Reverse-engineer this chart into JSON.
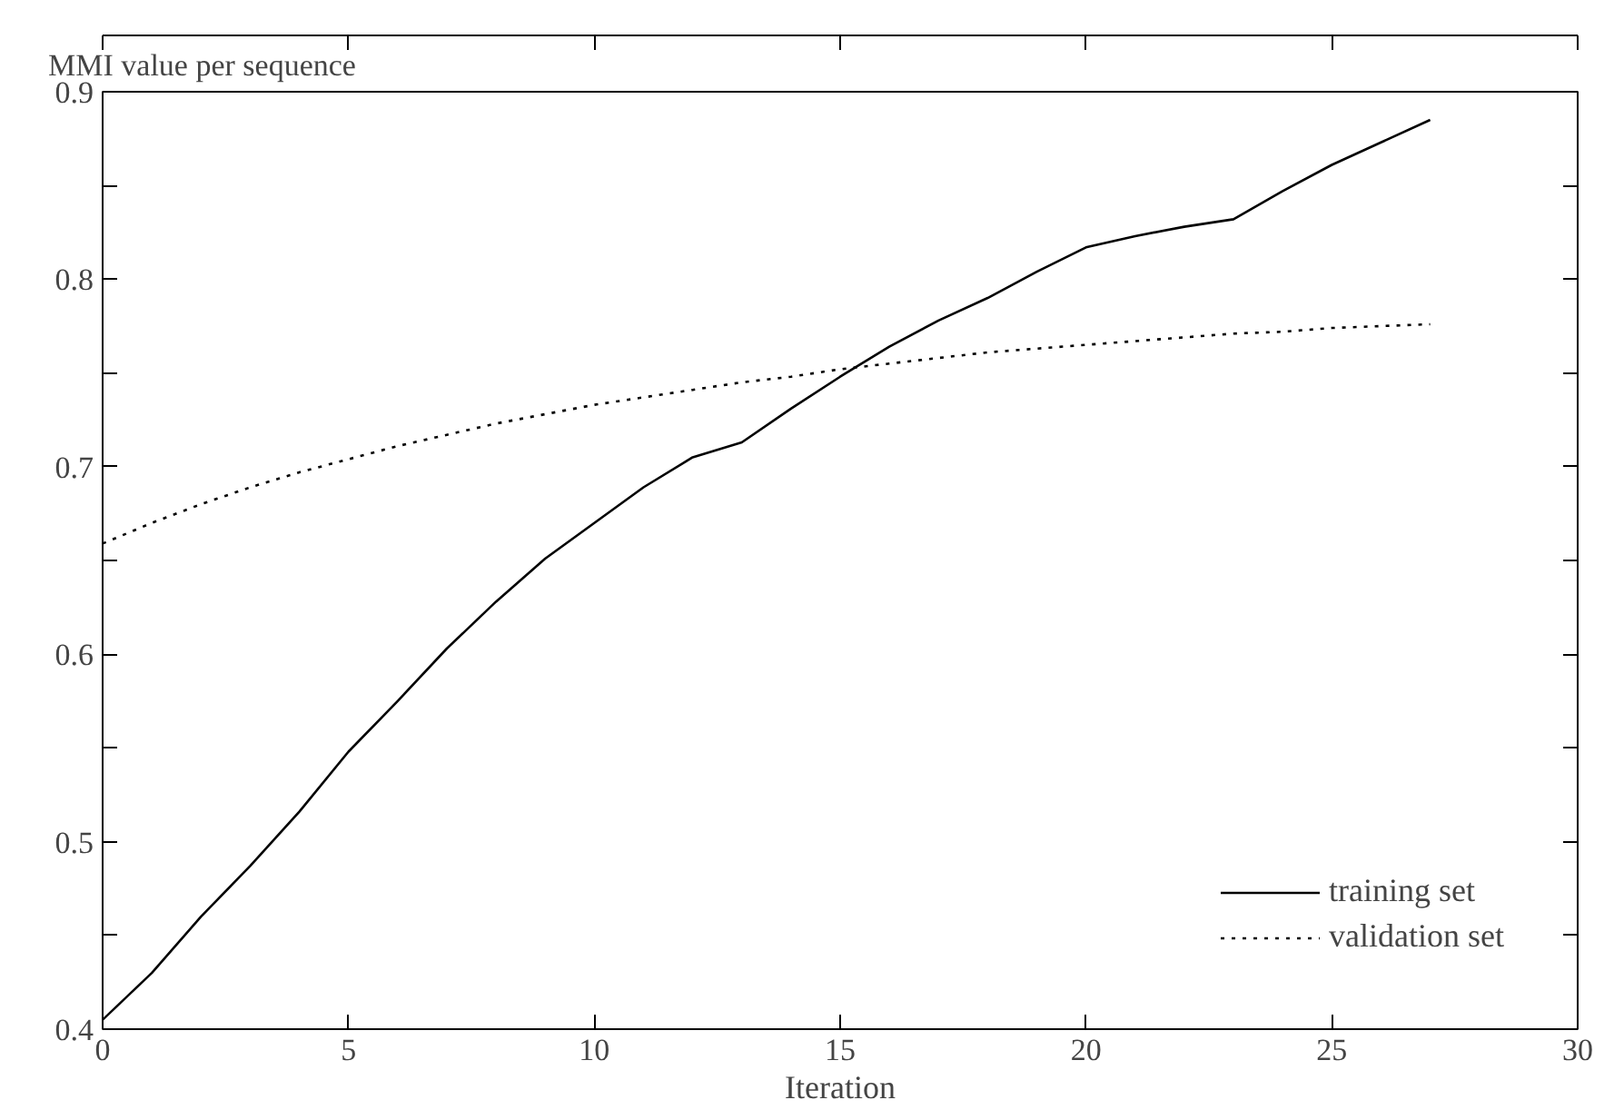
{
  "chart_data": {
    "type": "line",
    "ylabel": "MMI value per sequence",
    "xlabel": "Iteration",
    "x": [
      0,
      1,
      2,
      3,
      4,
      5,
      6,
      7,
      8,
      9,
      10,
      11,
      12,
      13,
      14,
      15,
      16,
      17,
      18,
      19,
      20,
      21,
      22,
      23,
      24,
      25,
      26,
      27
    ],
    "series": [
      {
        "name": "training set",
        "color": "#000000",
        "line_style": "solid",
        "values": [
          0.405,
          0.43,
          0.46,
          0.487,
          0.516,
          0.548,
          0.575,
          0.603,
          0.628,
          0.651,
          0.67,
          0.689,
          0.705,
          0.713,
          0.731,
          0.748,
          0.764,
          0.778,
          0.79,
          0.804,
          0.817,
          0.823,
          0.828,
          0.832,
          0.847,
          0.861,
          0.873,
          0.885
        ]
      },
      {
        "name": "validation set",
        "color": "#000000",
        "line_style": "dotted",
        "values": [
          0.659,
          0.67,
          0.68,
          0.689,
          0.697,
          0.704,
          0.711,
          0.717,
          0.723,
          0.728,
          0.733,
          0.737,
          0.741,
          0.745,
          0.748,
          0.752,
          0.755,
          0.758,
          0.761,
          0.763,
          0.765,
          0.767,
          0.769,
          0.771,
          0.772,
          0.774,
          0.775,
          0.776
        ]
      }
    ],
    "xlim": [
      0,
      30
    ],
    "xticks": [
      0,
      5,
      10,
      15,
      20,
      25,
      30
    ],
    "ylim": [
      0.4,
      0.9
    ],
    "yticks": [
      0.4,
      {
        "value": 0.45,
        "label": null
      },
      0.5,
      {
        "value": 0.55,
        "label": null
      },
      0.6,
      {
        "value": 0.65,
        "label": null
      },
      0.7,
      {
        "value": 0.75,
        "label": null
      },
      0.8,
      {
        "value": 0.85,
        "label": null
      },
      0.9
    ],
    "grid": false,
    "legend": "bottom right",
    "marker": "none"
  }
}
